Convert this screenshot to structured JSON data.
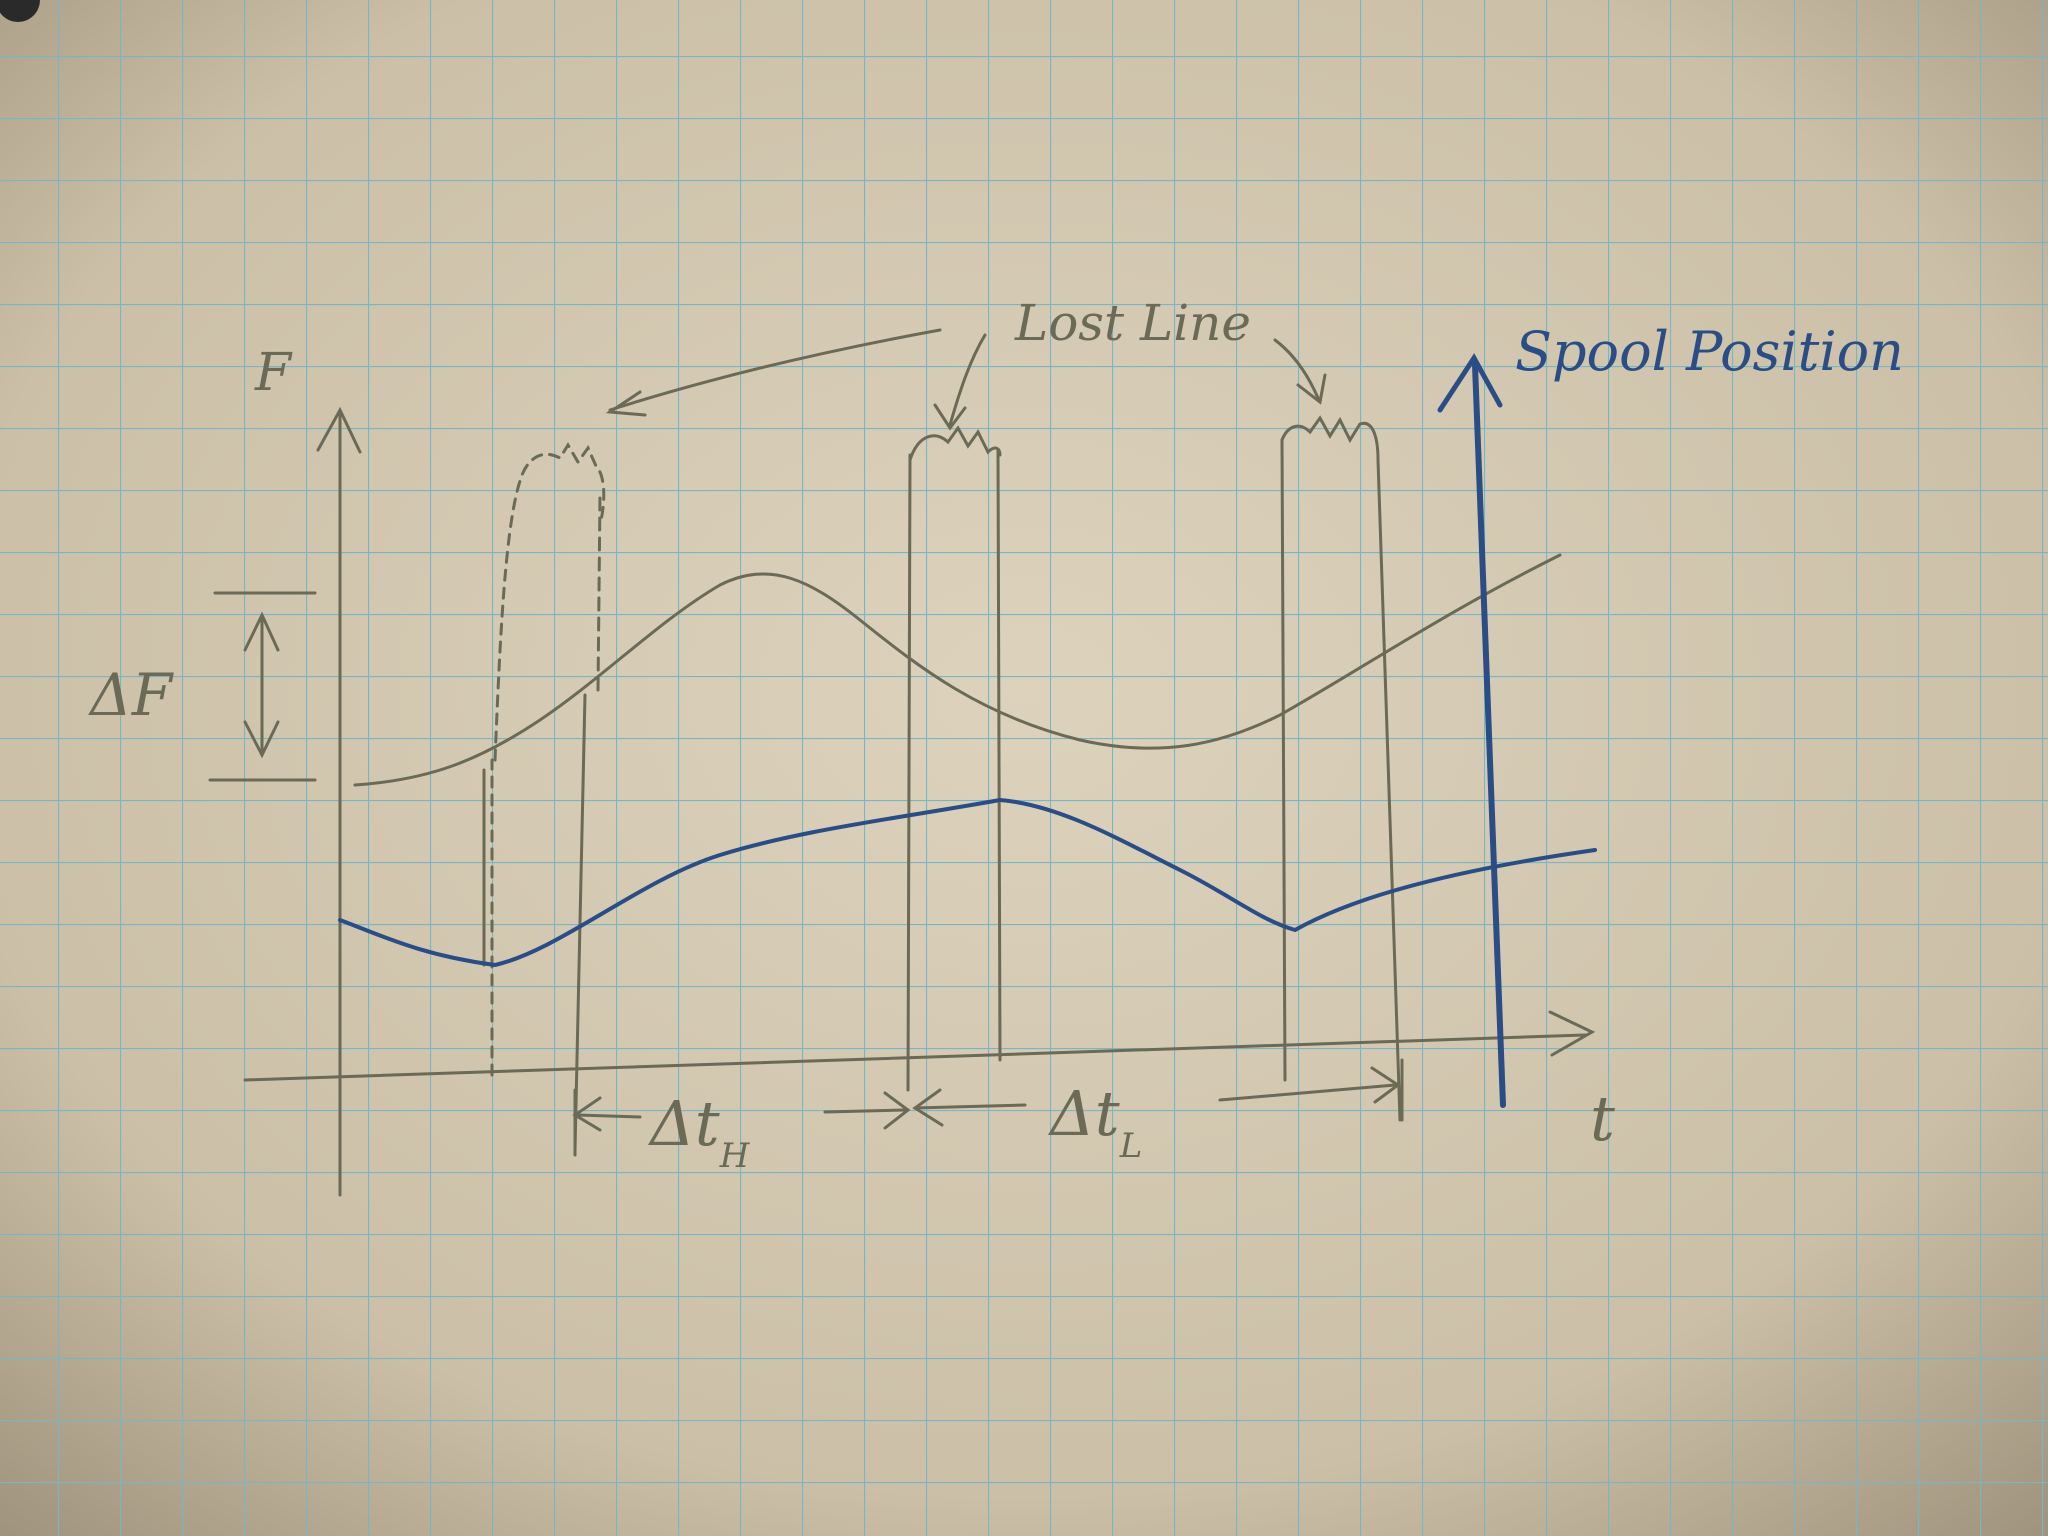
{
  "labels": {
    "f_axis": "F",
    "t_axis": "t",
    "spool_axis": "Spool Position",
    "delta_f": "ΔF",
    "lost_line": "Lost Line",
    "delta_t_h_main": "Δt",
    "delta_t_h_sub": "H",
    "delta_t_l_main": "Δt",
    "delta_t_l_sub": "L"
  },
  "colors": {
    "paper": "#d4c8b1",
    "grid": "#79b6c2",
    "pencil": "#6a6a56",
    "ink_blue": "#2b4d86"
  }
}
